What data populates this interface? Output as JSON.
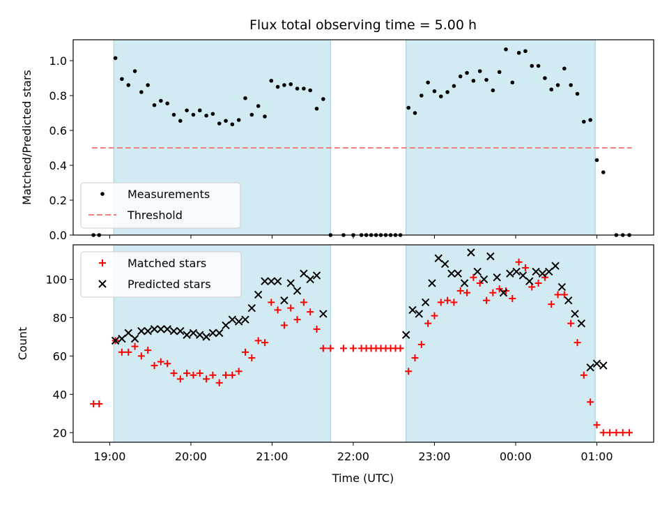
{
  "figure": {
    "title": "Flux total observing time = 5.00 h",
    "xlabel": "Time (UTC)",
    "xtick_labels": [
      "19:00",
      "20:00",
      "21:00",
      "22:00",
      "23:00",
      "00:00",
      "01:00"
    ]
  },
  "chart_data": [
    {
      "type": "scatter",
      "ylabel": "Matched/Predicted stars",
      "xlim": [
        -0.45,
        6.7
      ],
      "ylim": [
        0,
        1.12
      ],
      "yticks": [
        "0.0",
        "0.2",
        "0.4",
        "0.6",
        "0.8",
        "1.0"
      ],
      "shaded_intervals": [
        [
          0.05,
          2.72
        ],
        [
          3.65,
          5.98
        ]
      ],
      "shade_color": "#add8e6",
      "threshold": {
        "value": 0.5,
        "x_range": [
          -0.22,
          6.43
        ],
        "color": "#f08080"
      },
      "legend": {
        "position": "lower-left",
        "entries": [
          "Measurements",
          "Threshold"
        ]
      },
      "series": [
        {
          "name": "Measurements",
          "color": "#000000",
          "marker": "dot",
          "points": [
            [
              -0.2,
              0.0
            ],
            [
              -0.13,
              0.0
            ],
            [
              0.07,
              1.015
            ],
            [
              0.15,
              0.895
            ],
            [
              0.23,
              0.86
            ],
            [
              0.31,
              0.94
            ],
            [
              0.39,
              0.82
            ],
            [
              0.47,
              0.86
            ],
            [
              0.55,
              0.745
            ],
            [
              0.63,
              0.77
            ],
            [
              0.71,
              0.755
            ],
            [
              0.79,
              0.69
            ],
            [
              0.87,
              0.655
            ],
            [
              0.95,
              0.715
            ],
            [
              1.03,
              0.69
            ],
            [
              1.11,
              0.715
            ],
            [
              1.19,
              0.685
            ],
            [
              1.27,
              0.695
            ],
            [
              1.35,
              0.64
            ],
            [
              1.43,
              0.655
            ],
            [
              1.51,
              0.635
            ],
            [
              1.59,
              0.66
            ],
            [
              1.67,
              0.785
            ],
            [
              1.75,
              0.69
            ],
            [
              1.83,
              0.74
            ],
            [
              1.91,
              0.68
            ],
            [
              1.99,
              0.885
            ],
            [
              2.07,
              0.85
            ],
            [
              2.15,
              0.86
            ],
            [
              2.23,
              0.865
            ],
            [
              2.31,
              0.84
            ],
            [
              2.39,
              0.84
            ],
            [
              2.47,
              0.83
            ],
            [
              2.55,
              0.725
            ],
            [
              2.63,
              0.78
            ],
            [
              2.72,
              0.0
            ],
            [
              2.88,
              0.0
            ],
            [
              3.0,
              0.0
            ],
            [
              3.1,
              0.0
            ],
            [
              3.16,
              0.0
            ],
            [
              3.22,
              0.0
            ],
            [
              3.28,
              0.0
            ],
            [
              3.34,
              0.0
            ],
            [
              3.4,
              0.0
            ],
            [
              3.46,
              0.0
            ],
            [
              3.52,
              0.0
            ],
            [
              3.58,
              0.0
            ],
            [
              3.68,
              0.73
            ],
            [
              3.76,
              0.7
            ],
            [
              3.84,
              0.8
            ],
            [
              3.92,
              0.875
            ],
            [
              4.0,
              0.825
            ],
            [
              4.08,
              0.795
            ],
            [
              4.16,
              0.82
            ],
            [
              4.24,
              0.855
            ],
            [
              4.32,
              0.91
            ],
            [
              4.4,
              0.93
            ],
            [
              4.48,
              0.885
            ],
            [
              4.56,
              0.94
            ],
            [
              4.64,
              0.89
            ],
            [
              4.72,
              0.83
            ],
            [
              4.8,
              0.935
            ],
            [
              4.88,
              1.065
            ],
            [
              4.96,
              0.875
            ],
            [
              5.04,
              1.045
            ],
            [
              5.12,
              1.055
            ],
            [
              5.2,
              0.97
            ],
            [
              5.28,
              0.97
            ],
            [
              5.36,
              0.9
            ],
            [
              5.44,
              0.835
            ],
            [
              5.52,
              0.86
            ],
            [
              5.6,
              0.955
            ],
            [
              5.68,
              0.86
            ],
            [
              5.76,
              0.81
            ],
            [
              5.84,
              0.65
            ],
            [
              5.92,
              0.66
            ],
            [
              6.0,
              0.43
            ],
            [
              6.08,
              0.36
            ],
            [
              6.24,
              0.0
            ],
            [
              6.32,
              0.0
            ],
            [
              6.4,
              0.0
            ]
          ]
        }
      ]
    },
    {
      "type": "scatter",
      "ylabel": "Count",
      "xlim": [
        -0.45,
        6.7
      ],
      "ylim": [
        15,
        118
      ],
      "yticks": [
        "20",
        "40",
        "60",
        "80",
        "100"
      ],
      "shaded_intervals": [
        [
          0.05,
          2.72
        ],
        [
          3.65,
          5.98
        ]
      ],
      "shade_color": "#add8e6",
      "legend": {
        "position": "top-left",
        "entries": [
          "Matched stars",
          "Predicted stars"
        ]
      },
      "series": [
        {
          "name": "Matched stars",
          "color": "#ff0000",
          "marker": "plus",
          "points": [
            [
              -0.2,
              35
            ],
            [
              -0.13,
              35
            ],
            [
              0.07,
              68
            ],
            [
              0.15,
              62
            ],
            [
              0.23,
              62
            ],
            [
              0.31,
              65
            ],
            [
              0.39,
              60
            ],
            [
              0.47,
              63
            ],
            [
              0.55,
              55
            ],
            [
              0.63,
              57
            ],
            [
              0.71,
              56
            ],
            [
              0.79,
              51
            ],
            [
              0.87,
              48
            ],
            [
              0.95,
              51
            ],
            [
              1.03,
              50
            ],
            [
              1.11,
              51
            ],
            [
              1.19,
              48
            ],
            [
              1.27,
              50
            ],
            [
              1.35,
              46
            ],
            [
              1.43,
              50
            ],
            [
              1.51,
              50
            ],
            [
              1.59,
              52
            ],
            [
              1.67,
              62
            ],
            [
              1.75,
              59
            ],
            [
              1.83,
              68
            ],
            [
              1.91,
              67
            ],
            [
              1.99,
              88
            ],
            [
              2.07,
              84
            ],
            [
              2.15,
              76
            ],
            [
              2.23,
              85
            ],
            [
              2.31,
              79
            ],
            [
              2.39,
              88
            ],
            [
              2.47,
              83
            ],
            [
              2.55,
              74
            ],
            [
              2.63,
              64
            ],
            [
              2.72,
              64
            ],
            [
              2.88,
              64
            ],
            [
              3.0,
              64
            ],
            [
              3.1,
              64
            ],
            [
              3.16,
              64
            ],
            [
              3.22,
              64
            ],
            [
              3.28,
              64
            ],
            [
              3.34,
              64
            ],
            [
              3.4,
              64
            ],
            [
              3.46,
              64
            ],
            [
              3.52,
              64
            ],
            [
              3.58,
              64
            ],
            [
              3.68,
              52
            ],
            [
              3.76,
              59
            ],
            [
              3.84,
              66
            ],
            [
              3.92,
              77
            ],
            [
              4.0,
              81
            ],
            [
              4.08,
              88
            ],
            [
              4.16,
              89
            ],
            [
              4.24,
              88
            ],
            [
              4.32,
              94
            ],
            [
              4.4,
              93
            ],
            [
              4.48,
              101
            ],
            [
              4.56,
              98
            ],
            [
              4.64,
              89
            ],
            [
              4.72,
              93
            ],
            [
              4.8,
              95
            ],
            [
              4.88,
              94
            ],
            [
              4.96,
              90
            ],
            [
              5.04,
              109
            ],
            [
              5.12,
              106
            ],
            [
              5.2,
              96
            ],
            [
              5.28,
              98
            ],
            [
              5.36,
              101
            ],
            [
              5.44,
              87
            ],
            [
              5.52,
              92
            ],
            [
              5.6,
              92
            ],
            [
              5.68,
              77
            ],
            [
              5.76,
              67
            ],
            [
              5.84,
              50
            ],
            [
              5.92,
              36
            ],
            [
              6.0,
              24
            ],
            [
              6.08,
              20
            ],
            [
              6.16,
              20
            ],
            [
              6.24,
              20
            ],
            [
              6.32,
              20
            ],
            [
              6.4,
              20
            ]
          ]
        },
        {
          "name": "Predicted stars",
          "color": "#000000",
          "marker": "x",
          "points": [
            [
              0.07,
              68
            ],
            [
              0.15,
              69
            ],
            [
              0.23,
              72
            ],
            [
              0.31,
              69
            ],
            [
              0.39,
              73
            ],
            [
              0.47,
              73
            ],
            [
              0.55,
              74
            ],
            [
              0.63,
              74
            ],
            [
              0.71,
              74
            ],
            [
              0.79,
              73
            ],
            [
              0.87,
              73
            ],
            [
              0.95,
              71
            ],
            [
              1.03,
              72
            ],
            [
              1.11,
              71
            ],
            [
              1.19,
              70
            ],
            [
              1.27,
              72
            ],
            [
              1.35,
              72
            ],
            [
              1.43,
              76
            ],
            [
              1.51,
              79
            ],
            [
              1.59,
              78
            ],
            [
              1.67,
              79
            ],
            [
              1.75,
              85
            ],
            [
              1.83,
              92
            ],
            [
              1.91,
              99
            ],
            [
              1.99,
              99
            ],
            [
              2.07,
              99
            ],
            [
              2.15,
              89
            ],
            [
              2.23,
              98
            ],
            [
              2.31,
              94
            ],
            [
              2.39,
              103
            ],
            [
              2.47,
              100
            ],
            [
              2.55,
              102
            ],
            [
              2.63,
              82
            ],
            [
              3.65,
              71
            ],
            [
              3.73,
              84
            ],
            [
              3.81,
              82
            ],
            [
              3.89,
              88
            ],
            [
              3.97,
              98
            ],
            [
              4.05,
              111
            ],
            [
              4.13,
              108
            ],
            [
              4.21,
              103
            ],
            [
              4.29,
              103
            ],
            [
              4.37,
              98
            ],
            [
              4.45,
              114
            ],
            [
              4.53,
              104
            ],
            [
              4.61,
              100
            ],
            [
              4.69,
              112
            ],
            [
              4.77,
              101
            ],
            [
              4.85,
              93
            ],
            [
              4.93,
              103
            ],
            [
              5.01,
              104
            ],
            [
              5.09,
              102
            ],
            [
              5.17,
              99
            ],
            [
              5.25,
              104
            ],
            [
              5.33,
              103
            ],
            [
              5.41,
              104
            ],
            [
              5.49,
              107
            ],
            [
              5.57,
              96
            ],
            [
              5.65,
              89
            ],
            [
              5.73,
              82
            ],
            [
              5.81,
              77
            ],
            [
              5.92,
              54
            ],
            [
              6.0,
              56
            ],
            [
              6.08,
              55
            ]
          ]
        }
      ]
    }
  ]
}
